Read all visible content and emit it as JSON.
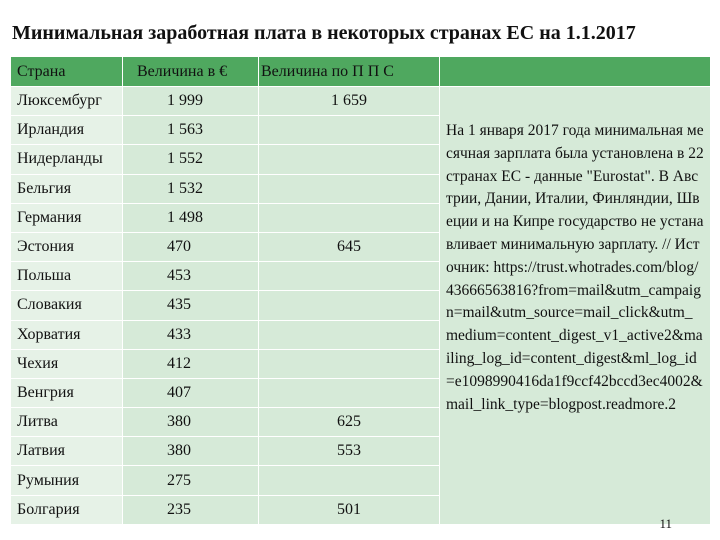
{
  "title": "Минимальная заработная плата в некоторых странах ЕС на 1.1.2017",
  "headers": {
    "country": "Страна",
    "value_eur": "Величина в €",
    "value_ppp": "Величина по П П С",
    "note": ""
  },
  "rows": [
    {
      "country": "Люксембург",
      "eur": "1 999",
      "ppp": "1 659"
    },
    {
      "country": "Ирландия",
      "eur": "1 563",
      "ppp": ""
    },
    {
      "country": "Нидерланды",
      "eur": "1 552",
      "ppp": ""
    },
    {
      "country": "Бельгия",
      "eur": "1 532",
      "ppp": ""
    },
    {
      "country": "Германия",
      "eur": "1 498",
      "ppp": ""
    },
    {
      "country": "Эстония",
      "eur": "470",
      "ppp": "645"
    },
    {
      "country": "Польша",
      "eur": "453",
      "ppp": ""
    },
    {
      "country": "Словакия",
      "eur": "435",
      "ppp": ""
    },
    {
      "country": "Хорватия",
      "eur": "433",
      "ppp": ""
    },
    {
      "country": "Чехия",
      "eur": "412",
      "ppp": ""
    },
    {
      "country": "Венгрия",
      "eur": "407",
      "ppp": ""
    },
    {
      "country": "Литва",
      "eur": "380",
      "ppp": "625"
    },
    {
      "country": "Латвия",
      "eur": "380",
      "ppp": "553"
    },
    {
      "country": "Румыния",
      "eur": "275",
      "ppp": ""
    },
    {
      "country": "Болгария",
      "eur": "235",
      "ppp": "501"
    }
  ],
  "note": "На 1 января 2017 года минимальная месячная зарплата была установлена в 22 странах ЕС - данные \"Eurostat\". В Австрии, Дании, Италии, Финляндии, Швеции и на Кипре государство не устанавливает минимальную зарплату. // Источник: https://trust.whotrades.com/blog/43666563816?from=mail&utm_campaign=mail&utm_source=mail_click&utm_medium=content_digest_v1_active2&mailing_log_id=content_digest&ml_log_id=e1098990416da1f9ccf42bccd3ec4002&mail_link_type=blogpost.readmore.2",
  "page_number": "11",
  "colors": {
    "header_bg": "#4fa85f",
    "cell_bg": "#d6ead8",
    "cell_bg_light": "#e6f2e7"
  }
}
